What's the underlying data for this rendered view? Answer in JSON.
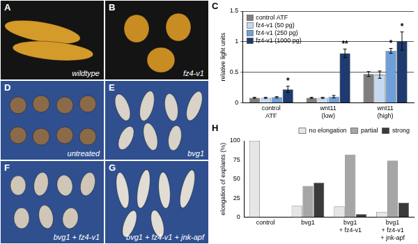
{
  "panels": [
    {
      "label": "A",
      "caption": "wildtype"
    },
    {
      "label": "B",
      "caption": "fz4-v1"
    },
    {
      "label": "D",
      "caption": "untreated"
    },
    {
      "label": "E",
      "caption": "bvg1"
    },
    {
      "label": "F",
      "caption": "bvg1 + fz4-v1"
    },
    {
      "label": "G",
      "caption": "bvg1 + fz4-v1 + jnk-apf"
    }
  ],
  "chart_data": [
    {
      "type": "bar",
      "title": "C",
      "y_label": "relative light units",
      "categories": [
        [
          "control",
          "ATF"
        ],
        [
          "wnt11",
          "(low)"
        ],
        [
          "wnt11",
          "(high)"
        ]
      ],
      "series": [
        {
          "name": "control ATF",
          "color": "#7f7f7f",
          "values": [
            0.08,
            0.08,
            0.47
          ],
          "errors": [
            0.01,
            0.01,
            0.04
          ]
        },
        {
          "name": "fz4-v1 (50 pg)",
          "color": "#c5d9f1",
          "values": [
            0.08,
            0.08,
            0.46
          ],
          "errors": [
            0.01,
            0.01,
            0.06
          ]
        },
        {
          "name": "fz4-v1 (250 pg)",
          "color": "#6f9fd8",
          "values": [
            0.09,
            0.1,
            0.85
          ],
          "errors": [
            0.01,
            0.02,
            0.04
          ]
        },
        {
          "name": "fz4-v1 (1000 pg)",
          "color": "#1f3a6e",
          "values": [
            0.22,
            0.81,
            1.01
          ],
          "errors": [
            0.05,
            0.07,
            0.15
          ]
        }
      ],
      "annotations": [
        {
          "text": "*",
          "series": "fz4-v1 (1000 pg)",
          "category": [
            "control",
            "ATF"
          ]
        },
        {
          "text": "**",
          "series": "fz4-v1 (1000 pg)",
          "category": [
            "wnt11",
            "(low)"
          ]
        },
        {
          "text": "*",
          "series": "fz4-v1 (250 pg)",
          "category": [
            "wnt11",
            "(high)"
          ]
        },
        {
          "text": "*",
          "series": "fz4-v1 (1000 pg)",
          "category": [
            "wnt11",
            "(high)"
          ]
        }
      ],
      "ylim": [
        0,
        1.5
      ],
      "yticks": [
        0,
        0.5,
        1,
        1.5
      ],
      "grid": true,
      "legend": "top-left"
    },
    {
      "type": "bar",
      "title": "H",
      "y_label": "elongation of explants (%)",
      "categories": [
        [
          "control"
        ],
        [
          "bvg1"
        ],
        [
          "bvg1",
          "+ fz4-v1"
        ],
        [
          "bvg1",
          "+ fz4-v1",
          "+ jnk-apf"
        ]
      ],
      "series": [
        {
          "name": "no elongation",
          "color": "#e6e6e6",
          "values": [
            100,
            15,
            14,
            7
          ]
        },
        {
          "name": "partial",
          "color": "#a6a6a6",
          "values": [
            0,
            41,
            82,
            74
          ]
        },
        {
          "name": "strong",
          "color": "#3a3a3a",
          "values": [
            0,
            45,
            4,
            19
          ]
        }
      ],
      "ylim": [
        0,
        100
      ],
      "yticks": [
        0,
        25,
        50,
        75,
        100
      ],
      "grid": false,
      "legend": "top"
    }
  ]
}
